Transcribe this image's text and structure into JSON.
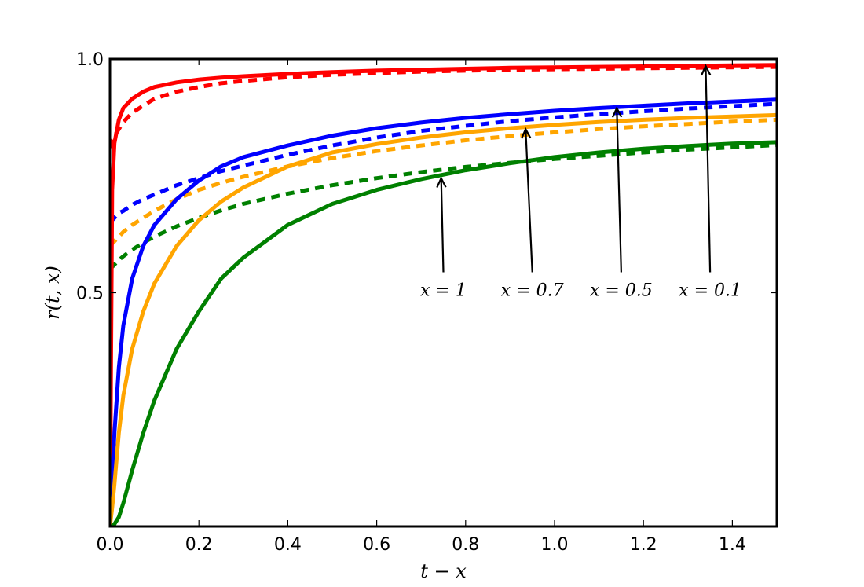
{
  "chart_data": {
    "type": "line",
    "xlabel": "t − x",
    "ylabel": "r(t, x)",
    "xlim": [
      0,
      1.5
    ],
    "ylim": [
      0,
      1.0
    ],
    "grid": false,
    "x_ticks": [
      {
        "value": 0.0,
        "label": "0.0"
      },
      {
        "value": 0.2,
        "label": "0.2"
      },
      {
        "value": 0.4,
        "label": "0.4"
      },
      {
        "value": 0.6,
        "label": "0.6"
      },
      {
        "value": 0.8,
        "label": "0.8"
      },
      {
        "value": 1.0,
        "label": "1.0"
      },
      {
        "value": 1.2,
        "label": "1.2"
      },
      {
        "value": 1.4,
        "label": "1.4"
      }
    ],
    "y_ticks": [
      {
        "value": 0.5,
        "label": "0.5"
      },
      {
        "value": 1.0,
        "label": "1.0"
      }
    ],
    "x": [
      0.0,
      0.005,
      0.01,
      0.02,
      0.03,
      0.05,
      0.075,
      0.1,
      0.15,
      0.2,
      0.25,
      0.3,
      0.4,
      0.5,
      0.6,
      0.7,
      0.8,
      0.9,
      1.0,
      1.1,
      1.2,
      1.3,
      1.4,
      1.5
    ],
    "series": [
      {
        "key": "x01_solid",
        "color": "#ff0000",
        "dash": false,
        "values": [
          0.0,
          0.72,
          0.82,
          0.87,
          0.895,
          0.915,
          0.93,
          0.94,
          0.95,
          0.956,
          0.96,
          0.963,
          0.968,
          0.972,
          0.975,
          0.977,
          0.979,
          0.981,
          0.982,
          0.983,
          0.984,
          0.985,
          0.986,
          0.987
        ]
      },
      {
        "key": "x01_dashed",
        "color": "#ff0000",
        "dash": true,
        "values": [
          0.81,
          0.825,
          0.835,
          0.85,
          0.865,
          0.885,
          0.9,
          0.915,
          0.93,
          0.94,
          0.948,
          0.953,
          0.961,
          0.966,
          0.97,
          0.973,
          0.975,
          0.977,
          0.978,
          0.979,
          0.98,
          0.981,
          0.982,
          0.983
        ]
      },
      {
        "key": "x05_solid",
        "color": "#0000ff",
        "dash": false,
        "values": [
          0.0,
          0.1,
          0.2,
          0.34,
          0.43,
          0.53,
          0.6,
          0.645,
          0.7,
          0.74,
          0.77,
          0.79,
          0.815,
          0.836,
          0.852,
          0.864,
          0.874,
          0.882,
          0.889,
          0.895,
          0.9,
          0.905,
          0.909,
          0.913
        ]
      },
      {
        "key": "x05_dashed",
        "color": "#0000ff",
        "dash": true,
        "values": [
          0.65,
          0.655,
          0.66,
          0.67,
          0.675,
          0.688,
          0.7,
          0.71,
          0.73,
          0.745,
          0.76,
          0.772,
          0.795,
          0.815,
          0.832,
          0.846,
          0.857,
          0.867,
          0.875,
          0.882,
          0.888,
          0.894,
          0.899,
          0.904
        ]
      },
      {
        "key": "x07_solid",
        "color": "#ffa500",
        "dash": false,
        "values": [
          0.0,
          0.04,
          0.09,
          0.2,
          0.28,
          0.38,
          0.46,
          0.52,
          0.6,
          0.655,
          0.695,
          0.725,
          0.77,
          0.8,
          0.818,
          0.832,
          0.843,
          0.852,
          0.859,
          0.865,
          0.87,
          0.874,
          0.877,
          0.88
        ]
      },
      {
        "key": "x07_dashed",
        "color": "#ffa500",
        "dash": true,
        "values": [
          0.6,
          0.605,
          0.61,
          0.62,
          0.63,
          0.645,
          0.66,
          0.675,
          0.7,
          0.72,
          0.735,
          0.748,
          0.77,
          0.788,
          0.803,
          0.815,
          0.826,
          0.835,
          0.843,
          0.85,
          0.856,
          0.861,
          0.866,
          0.87
        ]
      },
      {
        "key": "x1_solid",
        "color": "#008000",
        "dash": false,
        "values": [
          0.0,
          0.0,
          0.005,
          0.02,
          0.05,
          0.12,
          0.2,
          0.27,
          0.38,
          0.46,
          0.53,
          0.575,
          0.645,
          0.69,
          0.72,
          0.743,
          0.762,
          0.777,
          0.79,
          0.8,
          0.808,
          0.814,
          0.819,
          0.822
        ]
      },
      {
        "key": "x1_dashed",
        "color": "#008000",
        "dash": true,
        "values": [
          0.55,
          0.555,
          0.56,
          0.57,
          0.578,
          0.592,
          0.607,
          0.62,
          0.642,
          0.66,
          0.676,
          0.69,
          0.712,
          0.73,
          0.745,
          0.758,
          0.769,
          0.778,
          0.786,
          0.793,
          0.8,
          0.806,
          0.811,
          0.816
        ]
      }
    ],
    "annotations": [
      {
        "text": "x = 1",
        "text_at": [
          0.75,
          0.5
        ],
        "arrow_to": [
          0.745,
          0.745
        ]
      },
      {
        "text": "x = 0.7",
        "text_at": [
          0.95,
          0.5
        ],
        "arrow_to": [
          0.935,
          0.85
        ]
      },
      {
        "text": "x = 0.5",
        "text_at": [
          1.15,
          0.5
        ],
        "arrow_to": [
          1.14,
          0.895
        ]
      },
      {
        "text": "x = 0.1",
        "text_at": [
          1.35,
          0.5
        ],
        "arrow_to": [
          1.34,
          0.985
        ]
      }
    ]
  }
}
